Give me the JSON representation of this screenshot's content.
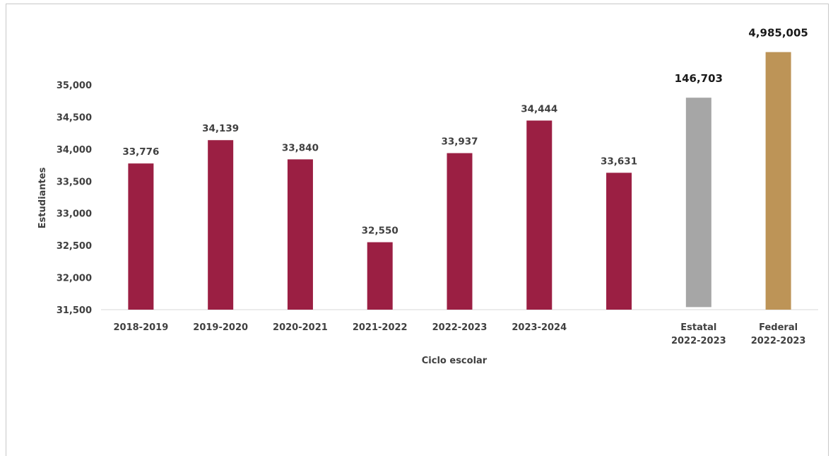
{
  "chart_data": {
    "type": "bar",
    "xlabel": "Ciclo escolar",
    "ylabel": "Estudiantes",
    "ylim": [
      31500,
      35000
    ],
    "yticks": [
      "35,000",
      "34,500",
      "34,000",
      "33,500",
      "33,000",
      "32,500",
      "32,000",
      "31,500"
    ],
    "ytick_values": [
      35000,
      34500,
      34000,
      33500,
      33000,
      32500,
      32000,
      31500
    ],
    "categories": [
      [
        "2018-2019"
      ],
      [
        "2019-2020"
      ],
      [
        "2020-2021"
      ],
      [
        "2021-2022"
      ],
      [
        "2022-2023"
      ],
      [
        "2023-2024"
      ],
      [
        ""
      ],
      [
        "Estatal",
        "2022-2023"
      ],
      [
        "Federal",
        "2022-2023"
      ]
    ],
    "values": [
      33776,
      34139,
      33840,
      32550,
      33937,
      34444,
      33631,
      146703,
      4985005
    ],
    "value_labels": [
      "33,776",
      "34,139",
      "33,840",
      "32,550",
      "33,937",
      "34,444",
      "33,631",
      "146,703",
      "4,985,005"
    ],
    "colors": [
      "#9b1f43",
      "#9b1f43",
      "#9b1f43",
      "#9b1f43",
      "#9b1f43",
      "#9b1f43",
      "#9b1f43",
      "#a6a6a6",
      "#bd9457"
    ],
    "grid": false,
    "legend": "none",
    "note": "last two bars (Estatal, Federal) are not drawn to the y-axis scale"
  }
}
